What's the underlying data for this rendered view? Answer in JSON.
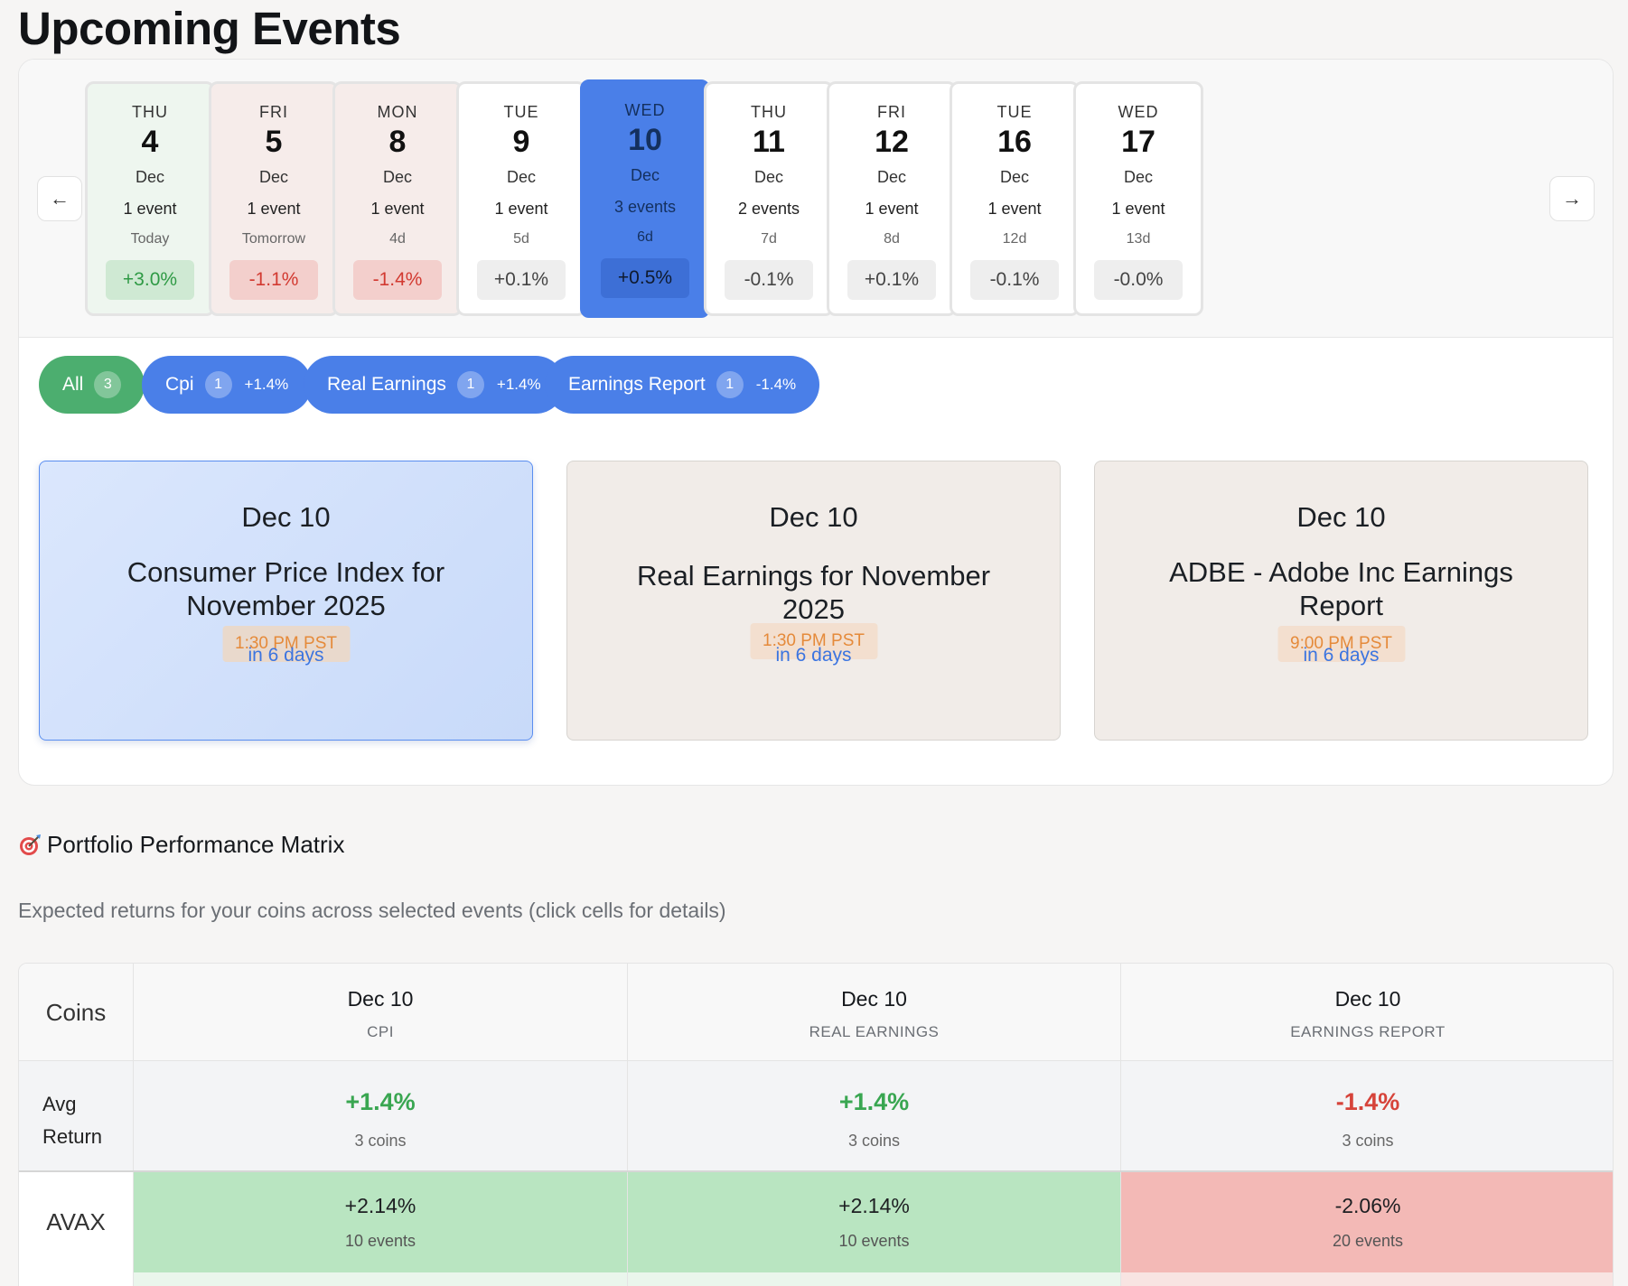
{
  "page": {
    "title": "Upcoming Events"
  },
  "nav": {
    "prev_icon": "←",
    "next_icon": "→"
  },
  "days": [
    {
      "dow": "THU",
      "day": "4",
      "month": "Dec",
      "count": "1 event",
      "relative": "Today",
      "change": "+3.0%"
    },
    {
      "dow": "FRI",
      "day": "5",
      "month": "Dec",
      "count": "1 event",
      "relative": "Tomorrow",
      "change": "-1.1%"
    },
    {
      "dow": "MON",
      "day": "8",
      "month": "Dec",
      "count": "1 event",
      "relative": "4d",
      "change": "-1.4%"
    },
    {
      "dow": "TUE",
      "day": "9",
      "month": "Dec",
      "count": "1 event",
      "relative": "5d",
      "change": "+0.1%"
    },
    {
      "dow": "WED",
      "day": "10",
      "month": "Dec",
      "count": "3 events",
      "relative": "6d",
      "change": "+0.5%"
    },
    {
      "dow": "THU",
      "day": "11",
      "month": "Dec",
      "count": "2 events",
      "relative": "7d",
      "change": "-0.1%"
    },
    {
      "dow": "FRI",
      "day": "12",
      "month": "Dec",
      "count": "1 event",
      "relative": "8d",
      "change": "+0.1%"
    },
    {
      "dow": "TUE",
      "day": "16",
      "month": "Dec",
      "count": "1 event",
      "relative": "12d",
      "change": "-0.1%"
    },
    {
      "dow": "WED",
      "day": "17",
      "month": "Dec",
      "count": "1 event",
      "relative": "13d",
      "change": "-0.0%"
    }
  ],
  "filters": [
    {
      "label": "All",
      "count": "3",
      "pct": ""
    },
    {
      "label": "Cpi",
      "count": "1",
      "pct": "+1.4%"
    },
    {
      "label": "Real Earnings",
      "count": "1",
      "pct": "+1.4%"
    },
    {
      "label": "Earnings Report",
      "count": "1",
      "pct": "-1.4%"
    }
  ],
  "event_cards": [
    {
      "date": "Dec 10",
      "title": "Consumer Price Index for November 2025",
      "time": "1:30 PM PST",
      "relative": "in 6 days"
    },
    {
      "date": "Dec 10",
      "title": "Real Earnings for November 2025",
      "time": "1:30 PM PST",
      "relative": "in 6 days"
    },
    {
      "date": "Dec 10",
      "title": "ADBE - Adobe Inc Earnings Report",
      "time": "9:00 PM PST",
      "relative": "in 6 days"
    }
  ],
  "matrix": {
    "section_icon": "target-icon",
    "section_title": "Portfolio Performance Matrix",
    "subtitle": "Expected returns for your coins across selected events (click cells for details)",
    "coins_header": "Coins",
    "columns": [
      {
        "date": "Dec 10",
        "type": "CPI"
      },
      {
        "date": "Dec 10",
        "type": "REAL EARNINGS"
      },
      {
        "date": "Dec 10",
        "type": "EARNINGS REPORT"
      }
    ],
    "avg_label": "Avg Return",
    "avg": [
      {
        "value": "+1.4%",
        "sub": "3 coins"
      },
      {
        "value": "+1.4%",
        "sub": "3 coins"
      },
      {
        "value": "-1.4%",
        "sub": "3 coins"
      }
    ],
    "rows": [
      {
        "coin": "AVAX",
        "cells": [
          {
            "value": "+2.14%",
            "sub": "10 events"
          },
          {
            "value": "+2.14%",
            "sub": "10 events"
          },
          {
            "value": "-2.06%",
            "sub": "20 events"
          }
        ]
      }
    ]
  },
  "colors": {
    "accent_blue": "#4a7fe8",
    "positive_green": "#39a651",
    "negative_red": "#d6433a",
    "chip_green": "#4cae6f"
  }
}
